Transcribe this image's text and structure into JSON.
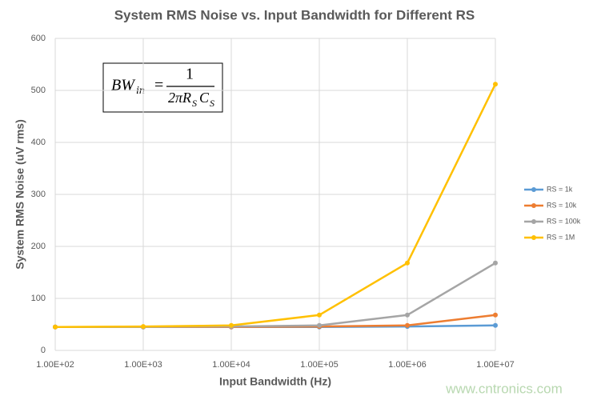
{
  "chart_data": {
    "type": "line",
    "title": "System RMS Noise vs. Input Bandwidth for Different RS",
    "x_label": "Input Bandwidth (Hz)",
    "y_label": "System RMS Noise (uV rms)",
    "x": [
      100,
      1000,
      10000,
      100000,
      1000000,
      10000000
    ],
    "xscale": "log",
    "xlim": [
      100,
      10000000
    ],
    "xticks": [
      {
        "value": 100,
        "label": "1.00E+02"
      },
      {
        "value": 1000,
        "label": "1.00E+03"
      },
      {
        "value": 10000,
        "label": "1.00E+04"
      },
      {
        "value": 100000,
        "label": "1.00E+05"
      },
      {
        "value": 1000000,
        "label": "1.00E+06"
      },
      {
        "value": 10000000,
        "label": "1.00E+07"
      }
    ],
    "ylim": [
      0,
      600
    ],
    "yticks": [
      0,
      100,
      200,
      300,
      400,
      500,
      600
    ],
    "grid": true,
    "legend": "right",
    "series": [
      {
        "name": "RS = 1k",
        "color": "#5b9bd5",
        "values": [
          45,
          45,
          45,
          45,
          46,
          48
        ]
      },
      {
        "name": "RS = 10k",
        "color": "#ed7d31",
        "values": [
          45,
          45,
          45,
          46,
          48,
          68
        ]
      },
      {
        "name": "RS = 100k",
        "color": "#a5a5a5",
        "values": [
          45,
          45,
          46,
          48,
          68,
          168
        ]
      },
      {
        "name": "RS = 1M",
        "color": "#ffc000",
        "values": [
          45,
          46,
          48,
          68,
          168,
          512
        ]
      }
    ],
    "annotation": {
      "lhs": "BW",
      "lhs_sub": "in",
      "equals": "=",
      "numerator": "1",
      "den_a": "2πR",
      "den_sub_a": "S",
      "den_b": "C",
      "den_sub_b": "S"
    },
    "watermark": "www.cntronics.com"
  }
}
